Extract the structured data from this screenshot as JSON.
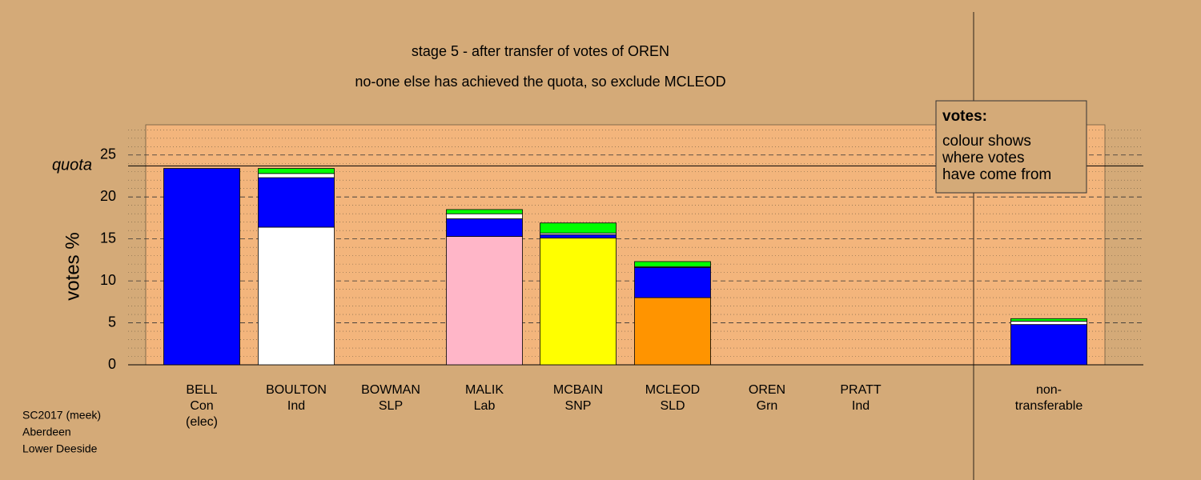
{
  "chart_data": {
    "type": "stacked_bar",
    "title": "stage 5 - after transfer of votes of OREN",
    "subtitle": "no-one else has achieved the quota, so exclude MCLEOD",
    "y_label": "votes %",
    "categories": [
      [
        "BELL",
        "Con",
        "(elec)"
      ],
      [
        "BOULTON",
        "Ind"
      ],
      [
        "BOWMAN",
        "SLP"
      ],
      [
        "MALIK",
        "Lab"
      ],
      [
        "MCBAIN",
        "SNP"
      ],
      [
        "MCLEOD",
        "SLD"
      ],
      [
        "OREN",
        "Grn"
      ],
      [
        "PRATT",
        "Ind"
      ],
      [
        "non-",
        "transferable"
      ]
    ],
    "series": [
      {
        "colors": [
          "#0000ff",
          "#ffffff",
          "#ffffff",
          "#ffb6c8",
          "#ffff00",
          "#ff9400",
          "#00ff00",
          "#ffffff",
          "#0000ff"
        ],
        "values": [
          23.4,
          16.4,
          0,
          15.3,
          15.1,
          8.0,
          0,
          0,
          0
        ]
      },
      {
        "color": "#0000ff",
        "values": [
          0,
          5.9,
          0,
          2.1,
          0.4,
          3.6,
          0,
          0,
          4.8
        ]
      },
      {
        "color": "#ffffff",
        "values": [
          0,
          0.5,
          0,
          0.6,
          0.2,
          0.1,
          0,
          0,
          0.4
        ]
      },
      {
        "color": "#00ff00",
        "values": [
          0,
          0.6,
          0,
          0.5,
          1.2,
          0.6,
          0,
          0,
          0.3
        ]
      }
    ],
    "quota": {
      "label": "quota",
      "value": 23.7
    },
    "ylim": [
      0,
      28.6
    ],
    "yticks": [
      0,
      5,
      10,
      15,
      20,
      25
    ],
    "minor_yticks": [
      1,
      2,
      3,
      4,
      6,
      7,
      8,
      9,
      11,
      12,
      13,
      14,
      16,
      17,
      18,
      19,
      21,
      22,
      23,
      24,
      26,
      27,
      28
    ],
    "grid": true,
    "legend": {
      "title": "votes:",
      "lines": [
        "colour shows",
        "where votes",
        "have come from"
      ]
    },
    "footer": [
      "SC2017 (meek)",
      "Aberdeen",
      "Lower Deeside"
    ]
  }
}
